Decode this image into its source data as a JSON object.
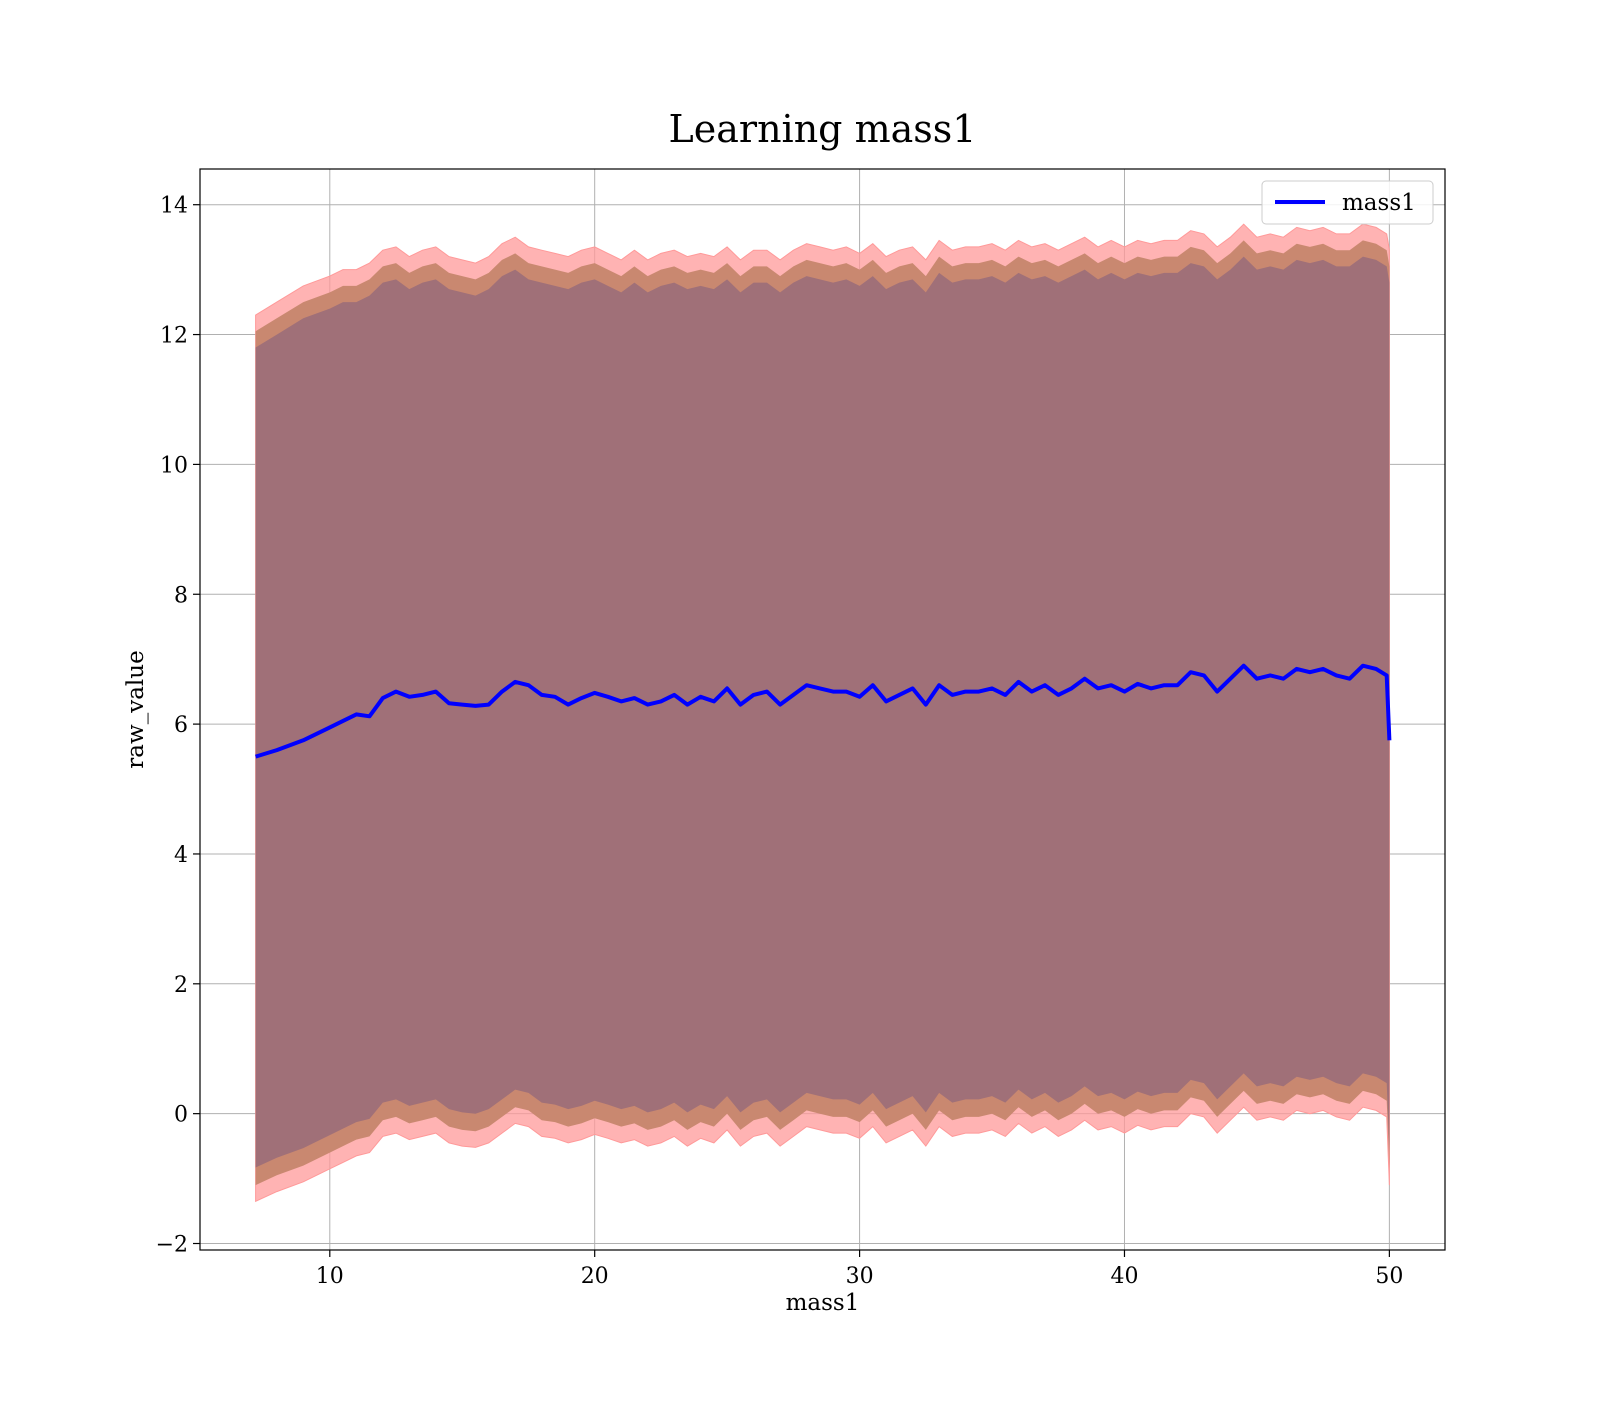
{
  "chart_data": {
    "type": "line",
    "title": "Learning mass1",
    "xlabel": "mass1",
    "ylabel": "raw_value",
    "xlim": [
      5.1,
      52.1
    ],
    "ylim": [
      -2.1,
      14.55
    ],
    "xticks": [
      10,
      20,
      30,
      40,
      50
    ],
    "xtick_labels": [
      "10",
      "20",
      "30",
      "40",
      "50"
    ],
    "yticks": [
      -2,
      0,
      2,
      4,
      6,
      8,
      10,
      12,
      14
    ],
    "ytick_labels": [
      "−2",
      "0",
      "2",
      "4",
      "6",
      "8",
      "10",
      "12",
      "14"
    ],
    "grid": true,
    "legend": {
      "position": "top-right",
      "entries": [
        "mass1"
      ]
    },
    "colors": {
      "line": "#0000ff",
      "band_outer": "#ff9999",
      "band_middle": "#c98870",
      "band_inner": "#a07078",
      "grid": "#b0b0b0"
    },
    "series": [
      {
        "name": "mass1",
        "x": [
          7.2,
          8.0,
          9.0,
          10.0,
          10.5,
          11.0,
          11.5,
          12.0,
          12.5,
          13.0,
          13.5,
          14.0,
          14.5,
          15.0,
          15.5,
          16.0,
          16.5,
          17.0,
          17.5,
          18.0,
          18.5,
          19.0,
          19.5,
          20.0,
          20.5,
          21.0,
          21.5,
          22.0,
          22.5,
          23.0,
          23.5,
          24.0,
          24.5,
          25.0,
          25.5,
          26.0,
          26.5,
          27.0,
          27.5,
          28.0,
          28.5,
          29.0,
          29.5,
          30.0,
          30.5,
          31.0,
          31.5,
          32.0,
          32.5,
          33.0,
          33.5,
          34.0,
          34.5,
          35.0,
          35.5,
          36.0,
          36.5,
          37.0,
          37.5,
          38.0,
          38.5,
          39.0,
          39.5,
          40.0,
          40.5,
          41.0,
          41.5,
          42.0,
          42.5,
          43.0,
          43.5,
          44.0,
          44.5,
          45.0,
          45.5,
          46.0,
          46.5,
          47.0,
          47.5,
          48.0,
          48.5,
          49.0,
          49.5,
          49.9,
          50.0
        ],
        "y": [
          5.5,
          5.6,
          5.75,
          5.95,
          6.05,
          6.15,
          6.12,
          6.4,
          6.5,
          6.42,
          6.45,
          6.5,
          6.32,
          6.3,
          6.28,
          6.3,
          6.5,
          6.65,
          6.6,
          6.45,
          6.42,
          6.3,
          6.4,
          6.48,
          6.42,
          6.35,
          6.4,
          6.3,
          6.35,
          6.45,
          6.3,
          6.42,
          6.35,
          6.55,
          6.3,
          6.45,
          6.5,
          6.3,
          6.45,
          6.6,
          6.55,
          6.5,
          6.5,
          6.42,
          6.6,
          6.35,
          6.45,
          6.55,
          6.3,
          6.6,
          6.45,
          6.5,
          6.5,
          6.55,
          6.45,
          6.65,
          6.5,
          6.6,
          6.45,
          6.55,
          6.7,
          6.55,
          6.6,
          6.5,
          6.62,
          6.55,
          6.6,
          6.6,
          6.8,
          6.75,
          6.5,
          6.7,
          6.9,
          6.7,
          6.75,
          6.7,
          6.85,
          6.8,
          6.85,
          6.75,
          6.7,
          6.9,
          6.85,
          6.75,
          5.75
        ],
        "band_upper": [
          12.3,
          12.5,
          12.75,
          12.9,
          13.0,
          13.0,
          13.1,
          13.3,
          13.35,
          13.2,
          13.3,
          13.35,
          13.2,
          13.15,
          13.1,
          13.2,
          13.4,
          13.5,
          13.35,
          13.3,
          13.25,
          13.2,
          13.3,
          13.35,
          13.25,
          13.15,
          13.3,
          13.15,
          13.25,
          13.3,
          13.2,
          13.25,
          13.2,
          13.35,
          13.15,
          13.3,
          13.3,
          13.15,
          13.3,
          13.4,
          13.35,
          13.3,
          13.35,
          13.25,
          13.4,
          13.2,
          13.3,
          13.35,
          13.15,
          13.45,
          13.3,
          13.35,
          13.35,
          13.4,
          13.3,
          13.45,
          13.35,
          13.4,
          13.3,
          13.4,
          13.5,
          13.35,
          13.45,
          13.35,
          13.45,
          13.4,
          13.45,
          13.45,
          13.6,
          13.55,
          13.35,
          13.5,
          13.7,
          13.5,
          13.55,
          13.5,
          13.65,
          13.6,
          13.65,
          13.55,
          13.55,
          13.7,
          13.65,
          13.55,
          13.3
        ],
        "band_lower": [
          -1.35,
          -1.2,
          -1.05,
          -0.85,
          -0.75,
          -0.65,
          -0.6,
          -0.35,
          -0.3,
          -0.4,
          -0.35,
          -0.3,
          -0.45,
          -0.5,
          -0.52,
          -0.45,
          -0.3,
          -0.15,
          -0.2,
          -0.35,
          -0.38,
          -0.45,
          -0.4,
          -0.32,
          -0.38,
          -0.45,
          -0.4,
          -0.5,
          -0.45,
          -0.35,
          -0.5,
          -0.38,
          -0.45,
          -0.25,
          -0.5,
          -0.35,
          -0.3,
          -0.5,
          -0.35,
          -0.2,
          -0.25,
          -0.3,
          -0.3,
          -0.38,
          -0.2,
          -0.45,
          -0.35,
          -0.25,
          -0.5,
          -0.2,
          -0.35,
          -0.3,
          -0.3,
          -0.25,
          -0.35,
          -0.15,
          -0.3,
          -0.2,
          -0.35,
          -0.25,
          -0.1,
          -0.25,
          -0.2,
          -0.3,
          -0.18,
          -0.25,
          -0.2,
          -0.2,
          0.0,
          -0.05,
          -0.3,
          -0.1,
          0.1,
          -0.1,
          -0.05,
          -0.1,
          0.05,
          0.0,
          0.05,
          -0.05,
          -0.1,
          0.1,
          0.05,
          -0.05,
          -1.1
        ]
      }
    ]
  }
}
